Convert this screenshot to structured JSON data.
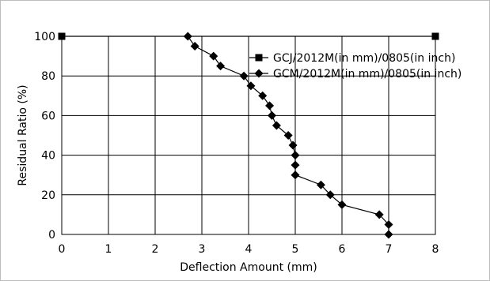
{
  "chart_data": {
    "type": "scatter",
    "title": "",
    "xlabel": "Deflection Amount (mm)",
    "ylabel": "Residual Ratio (%)",
    "xlim": [
      0,
      8
    ],
    "ylim": [
      0,
      100
    ],
    "x_ticks": [
      "0",
      "1",
      "2",
      "3",
      "4",
      "5",
      "6",
      "7",
      "8"
    ],
    "y_ticks": [
      "0",
      "20",
      "40",
      "60",
      "80",
      "100"
    ],
    "grid": true,
    "legend_position": "top-right",
    "series": [
      {
        "name": "GCJ/2012M(in mm)/0805(in inch)",
        "marker": "square",
        "color": "#000000",
        "points": [
          [
            0,
            100
          ],
          [
            8,
            100
          ]
        ]
      },
      {
        "name": "GCM/2012M(in mm)/0805(in inch)",
        "marker": "diamond",
        "color": "#000000",
        "points": [
          [
            2.7,
            100
          ],
          [
            2.85,
            95
          ],
          [
            3.25,
            90
          ],
          [
            3.4,
            85
          ],
          [
            3.9,
            80
          ],
          [
            4.05,
            75
          ],
          [
            4.3,
            70
          ],
          [
            4.45,
            65
          ],
          [
            4.5,
            60
          ],
          [
            4.6,
            55
          ],
          [
            4.85,
            50
          ],
          [
            4.95,
            45
          ],
          [
            5.0,
            40
          ],
          [
            5.0,
            35
          ],
          [
            5.0,
            30
          ],
          [
            5.55,
            25
          ],
          [
            5.75,
            20
          ],
          [
            6.0,
            15
          ],
          [
            6.8,
            10
          ],
          [
            7.0,
            5
          ],
          [
            7.0,
            0
          ]
        ]
      }
    ]
  }
}
